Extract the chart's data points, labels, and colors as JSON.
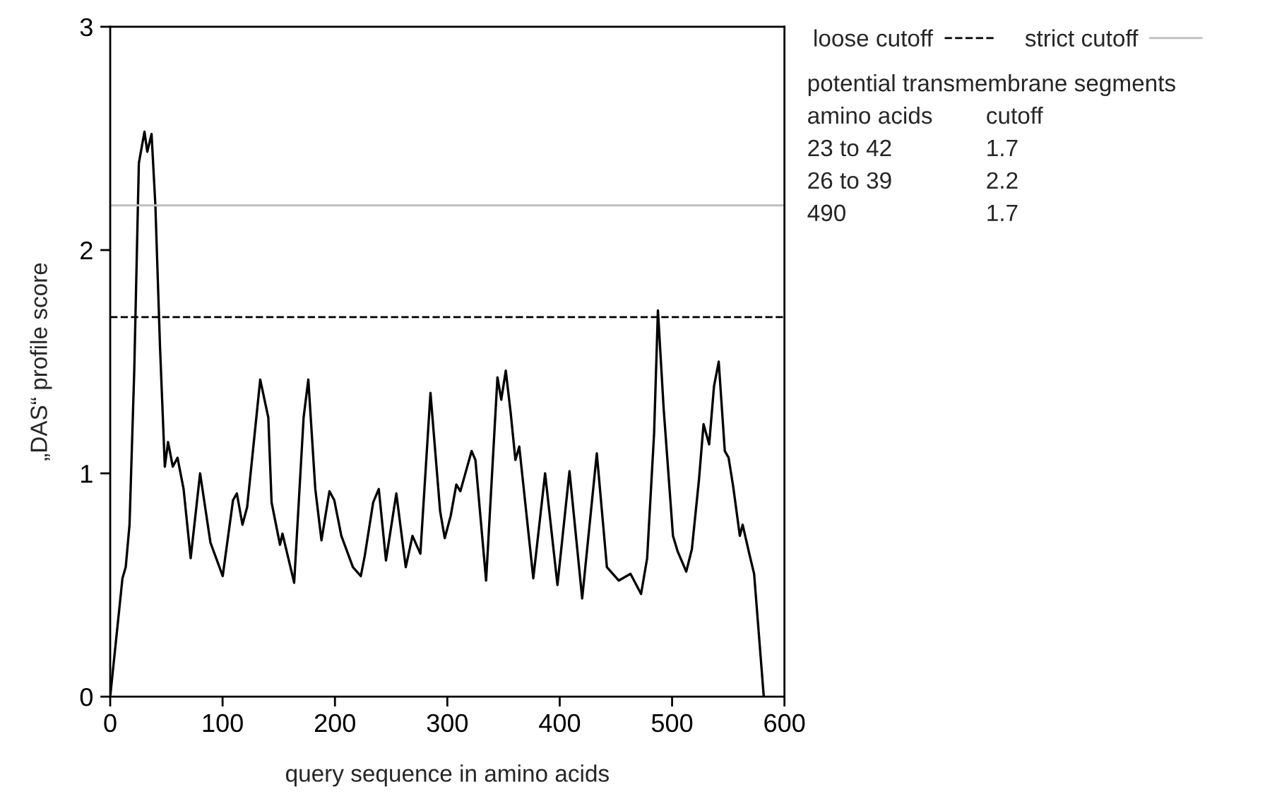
{
  "chart_data": {
    "type": "line",
    "xlabel": "query sequence in amino acids",
    "ylabel": "„DAS“ profile score",
    "xlim": [
      0,
      600
    ],
    "xticks": [
      0,
      100,
      200,
      300,
      400,
      500,
      600
    ],
    "ylim": [
      0,
      3
    ],
    "yticks": [
      0,
      1,
      2,
      3
    ],
    "grid": false,
    "legend": "top right",
    "series": [
      {
        "color": "#000000",
        "x": [
          0,
          10.9,
          13.8,
          17.2,
          21.4,
          25.5,
          30.5,
          33,
          36.8,
          40.2,
          44.3,
          48.6,
          51.5,
          55.7,
          59.9,
          65.3,
          71.6,
          80,
          89.2,
          100.1,
          109.3,
          112.7,
          117.7,
          121.9,
          133.5,
          140.7,
          143.6,
          151.1,
          153.3,
          163.7,
          172.1,
          176.3,
          182.5,
          188,
          195.1,
          199.4,
          205.7,
          216,
          223,
          226.5,
          234,
          239,
          245.4,
          254.6,
          263,
          269,
          276,
          285,
          293.6,
          297.7,
          303,
          308,
          311.6,
          316.6,
          321.6,
          325,
          334.5,
          344.6,
          348,
          352,
          356.4,
          360.6,
          364,
          376.5,
          387,
          398,
          408.7,
          420,
          433,
          442,
          452.6,
          463,
          472.4,
          477.8,
          484,
          487.4,
          492.5,
          500.8,
          505,
          512.6,
          517.6,
          523.9,
          528,
          533,
          537.3,
          541.5,
          546.9,
          550.3,
          554.4,
          560.3,
          562.8,
          568.7,
          573,
          581.6
        ],
        "values": [
          0,
          0.53,
          0.58,
          0.77,
          1.46,
          2.39,
          2.53,
          2.44,
          2.52,
          2.2,
          1.57,
          1.03,
          1.14,
          1.03,
          1.07,
          0.93,
          0.62,
          1.0,
          0.69,
          0.54,
          0.88,
          0.91,
          0.77,
          0.85,
          1.42,
          1.25,
          0.87,
          0.68,
          0.73,
          0.51,
          1.25,
          1.42,
          0.93,
          0.7,
          0.92,
          0.88,
          0.72,
          0.58,
          0.54,
          0.63,
          0.87,
          0.93,
          0.61,
          0.91,
          0.58,
          0.72,
          0.64,
          1.36,
          0.83,
          0.71,
          0.81,
          0.95,
          0.92,
          1.01,
          1.1,
          1.06,
          0.52,
          1.43,
          1.33,
          1.46,
          1.27,
          1.06,
          1.12,
          0.53,
          1.0,
          0.5,
          1.01,
          0.44,
          1.09,
          0.58,
          0.52,
          0.55,
          0.46,
          0.62,
          1.18,
          1.73,
          1.29,
          0.72,
          0.65,
          0.56,
          0.66,
          0.97,
          1.22,
          1.13,
          1.39,
          1.5,
          1.1,
          1.07,
          0.94,
          0.72,
          0.77,
          0.64,
          0.55,
          0
        ]
      }
    ],
    "ref_lines": [
      {
        "axis": "y",
        "value": 1.7,
        "label": "loose cutoff",
        "color": "#000000",
        "line_style": "dashed"
      },
      {
        "axis": "y",
        "value": 2.2,
        "label": "strict cutoff",
        "color": "#bfbfbf",
        "line_style": "solid"
      }
    ],
    "annotations": [
      "potential transmembrane segments",
      "amino acids",
      "cutoff",
      "23 to 42",
      "1.7",
      "26 to 39",
      "2.2",
      "490",
      "1.7"
    ]
  }
}
